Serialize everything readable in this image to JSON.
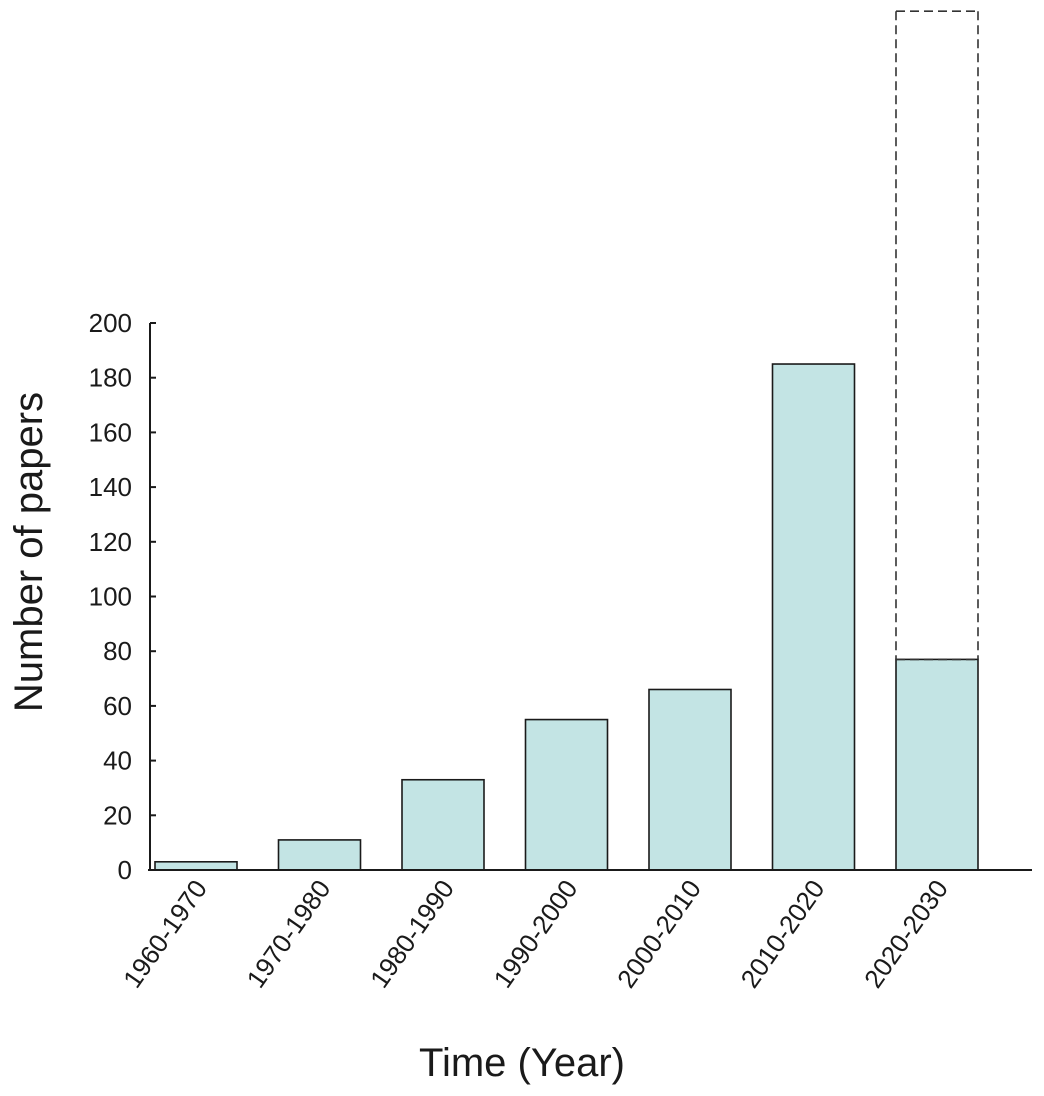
{
  "chart_data": {
    "type": "bar",
    "title": "",
    "xlabel": "Time (Year)",
    "ylabel": "Number of papers",
    "ylim": [
      0,
      200
    ],
    "yticks": [
      0,
      20,
      40,
      60,
      80,
      100,
      120,
      140,
      160,
      180,
      200
    ],
    "categories": [
      "1960-1970",
      "1970-1980",
      "1980-1990",
      "1990-2000",
      "2000-2010",
      "2010-2020",
      "2020-2030"
    ],
    "values": [
      3,
      11,
      33,
      55,
      66,
      185,
      77
    ],
    "projected": {
      "category": "2020-2030",
      "value": 314
    },
    "bar_color": "#c3e4e4",
    "grid": false,
    "legend": "none"
  }
}
